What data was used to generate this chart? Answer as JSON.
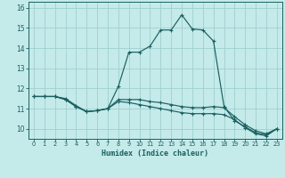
{
  "xlabel": "Humidex (Indice chaleur)",
  "background_color": "#c5eaea",
  "grid_color": "#9fcfcf",
  "line_color": "#1a6060",
  "xlim": [
    -0.5,
    23.5
  ],
  "ylim": [
    9.5,
    16.3
  ],
  "xticks": [
    0,
    1,
    2,
    3,
    4,
    5,
    6,
    7,
    8,
    9,
    10,
    11,
    12,
    13,
    14,
    15,
    16,
    17,
    18,
    19,
    20,
    21,
    22,
    23
  ],
  "yticks": [
    10,
    11,
    12,
    13,
    14,
    15,
    16
  ],
  "line1_x": [
    0,
    1,
    2,
    3,
    4,
    5,
    6,
    7,
    8,
    9,
    10,
    11,
    12,
    13,
    14,
    15,
    16,
    17,
    18,
    19,
    20,
    21,
    22,
    23
  ],
  "line1_y": [
    11.6,
    11.6,
    11.6,
    11.5,
    11.15,
    10.85,
    10.9,
    11.0,
    12.1,
    13.8,
    13.8,
    14.1,
    14.9,
    14.9,
    15.65,
    14.95,
    14.9,
    14.35,
    11.1,
    10.4,
    10.1,
    9.8,
    9.7,
    10.0
  ],
  "line2_x": [
    0,
    1,
    2,
    3,
    4,
    5,
    6,
    7,
    8,
    9,
    10,
    11,
    12,
    13,
    14,
    15,
    16,
    17,
    18,
    19,
    20,
    21,
    22,
    23
  ],
  "line2_y": [
    11.6,
    11.6,
    11.6,
    11.45,
    11.1,
    10.85,
    10.9,
    11.0,
    11.45,
    11.45,
    11.45,
    11.35,
    11.3,
    11.2,
    11.1,
    11.05,
    11.05,
    11.1,
    11.05,
    10.6,
    10.2,
    9.9,
    9.75,
    10.0
  ],
  "line3_x": [
    0,
    1,
    2,
    3,
    4,
    5,
    6,
    7,
    8,
    9,
    10,
    11,
    12,
    13,
    14,
    15,
    16,
    17,
    18,
    19,
    20,
    21,
    22,
    23
  ],
  "line3_y": [
    11.6,
    11.6,
    11.6,
    11.45,
    11.1,
    10.85,
    10.9,
    11.0,
    11.35,
    11.3,
    11.2,
    11.1,
    11.0,
    10.9,
    10.8,
    10.75,
    10.75,
    10.75,
    10.7,
    10.45,
    10.05,
    9.75,
    9.65,
    10.0
  ]
}
